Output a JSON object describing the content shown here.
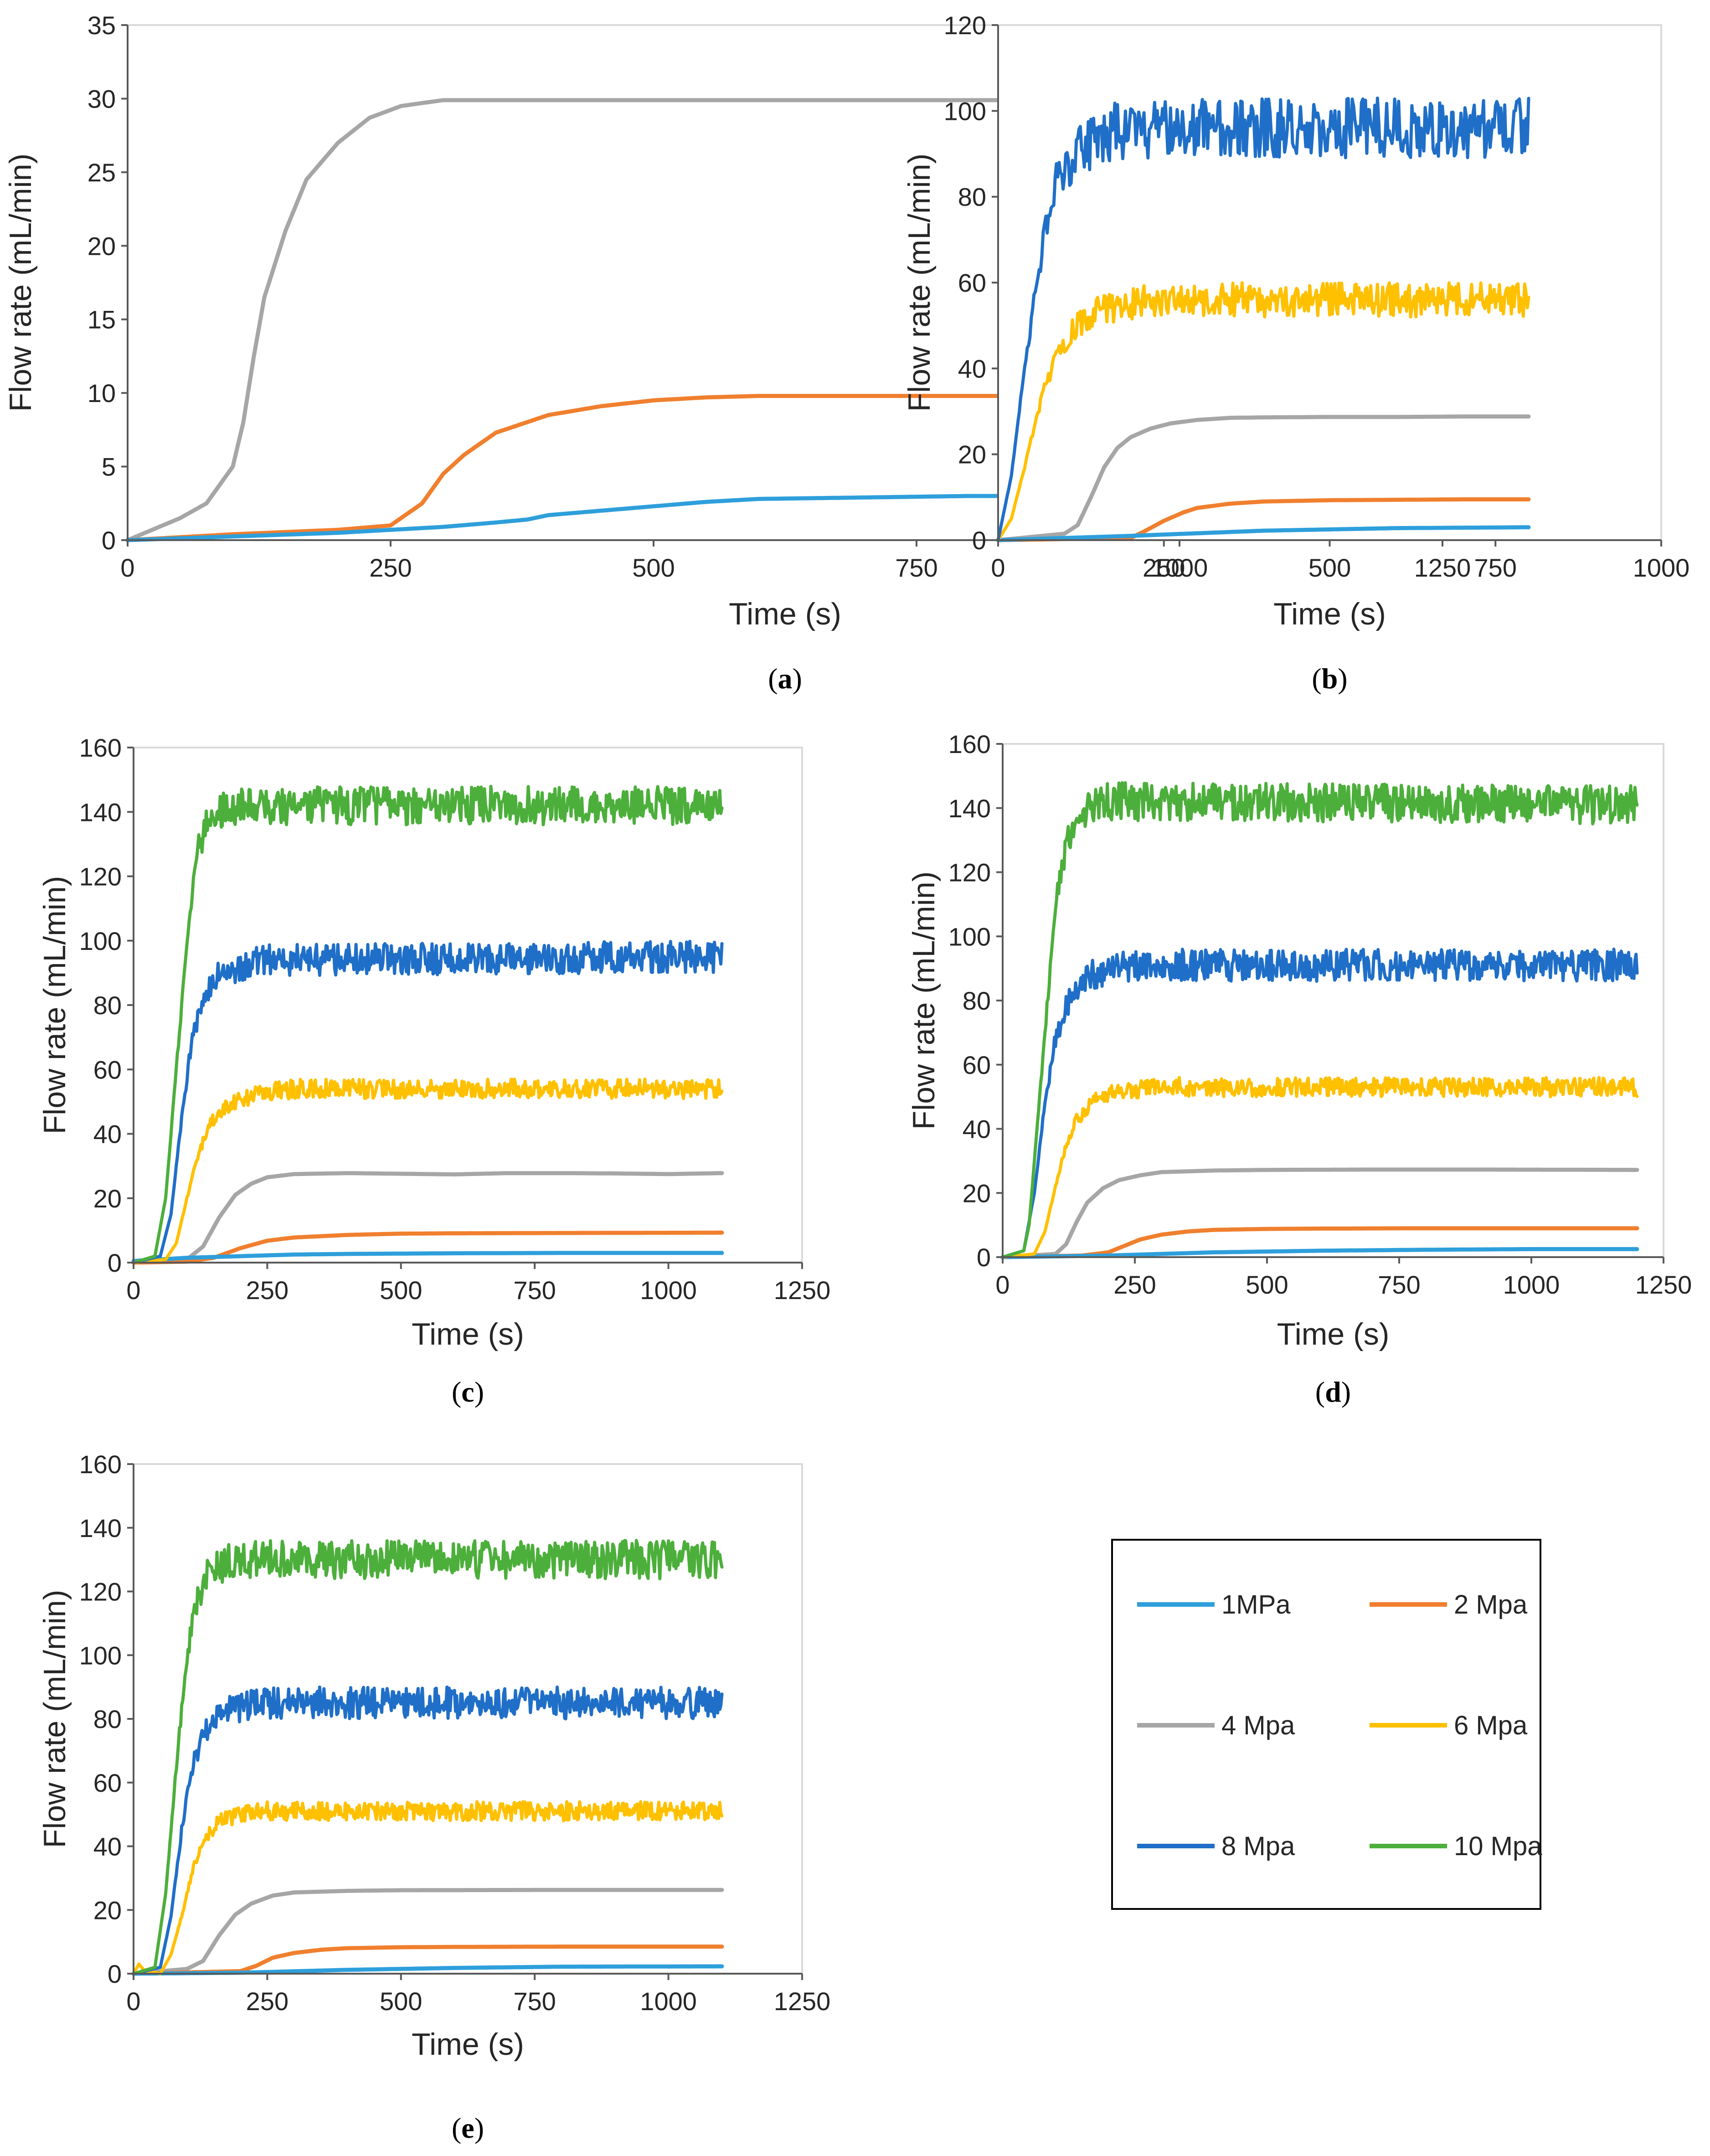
{
  "figure": {
    "legend": {
      "entries": [
        {
          "label": "1MPa",
          "color": "#2e9fdb"
        },
        {
          "label": "2 Mpa",
          "color": "#f07f2e"
        },
        {
          "label": "4 Mpa",
          "color": "#a6a6a6"
        },
        {
          "label": "6 Mpa",
          "color": "#ffc000"
        },
        {
          "label": "8 Mpa",
          "color": "#1f6fc8"
        },
        {
          "label": "10 Mpa",
          "color": "#4caf3b"
        }
      ]
    }
  },
  "chart_data": [
    {
      "panel": "a",
      "caption_open": "(",
      "caption_letter": "a",
      "caption_close": ")",
      "type": "line",
      "xlabel": "Time (s)",
      "ylabel": "Flow rate (mL/min)",
      "xlim": [
        0,
        1250
      ],
      "ylim": [
        0,
        35
      ],
      "xticks": [
        0,
        250,
        500,
        750,
        1000,
        1250
      ],
      "yticks": [
        0,
        5,
        10,
        15,
        20,
        25,
        30,
        35
      ],
      "grid": false,
      "series": [
        {
          "name": "1MPa",
          "color": "#2e9fdb",
          "noise": 0,
          "x": [
            0,
            100,
            200,
            250,
            300,
            350,
            380,
            400,
            450,
            500,
            550,
            600,
            700,
            800,
            900,
            1000
          ],
          "y": [
            0,
            0.25,
            0.5,
            0.7,
            0.9,
            1.2,
            1.4,
            1.7,
            2.0,
            2.3,
            2.6,
            2.8,
            2.9,
            3.0,
            3.0,
            3.0
          ]
        },
        {
          "name": "2 Mpa",
          "color": "#f07f2e",
          "noise": 0,
          "x": [
            0,
            100,
            200,
            250,
            280,
            300,
            320,
            350,
            400,
            450,
            500,
            550,
            600,
            700,
            800,
            900,
            1000
          ],
          "y": [
            0,
            0.4,
            0.7,
            1.0,
            2.5,
            4.5,
            5.8,
            7.3,
            8.5,
            9.1,
            9.5,
            9.7,
            9.8,
            9.8,
            9.8,
            9.8,
            9.8
          ]
        },
        {
          "name": "4 Mpa",
          "color": "#a6a6a6",
          "noise": 0,
          "x": [
            0,
            50,
            75,
            100,
            110,
            120,
            130,
            150,
            170,
            200,
            230,
            260,
            300,
            400,
            500,
            600,
            700,
            800,
            900,
            1000
          ],
          "y": [
            0,
            1.5,
            2.5,
            5.0,
            8.0,
            12.5,
            16.5,
            21.0,
            24.5,
            27.0,
            28.7,
            29.5,
            29.9,
            29.9,
            29.9,
            29.9,
            29.9,
            29.9,
            29.9,
            29.9
          ]
        }
      ]
    },
    {
      "panel": "b",
      "caption_open": "(",
      "caption_letter": "b",
      "caption_close": ")",
      "type": "line",
      "xlabel": "Time (s)",
      "ylabel": "Flow rate (mL/min)",
      "xlim": [
        0,
        1000
      ],
      "ylim": [
        0,
        120
      ],
      "xticks": [
        0,
        250,
        500,
        750,
        1000
      ],
      "yticks": [
        0,
        20,
        40,
        60,
        80,
        100,
        120
      ],
      "grid": false,
      "series": [
        {
          "name": "1MPa",
          "color": "#2e9fdb",
          "noise": 0,
          "x": [
            0,
            100,
            200,
            300,
            400,
            500,
            600,
            700,
            800
          ],
          "y": [
            0,
            0.5,
            1.0,
            1.6,
            2.2,
            2.5,
            2.8,
            2.9,
            3.0
          ]
        },
        {
          "name": "2 Mpa",
          "color": "#f07f2e",
          "noise": 0,
          "x": [
            0,
            200,
            220,
            250,
            280,
            300,
            350,
            400,
            500,
            600,
            700,
            800
          ],
          "y": [
            0,
            0.5,
            2.0,
            4.5,
            6.5,
            7.5,
            8.5,
            9.0,
            9.3,
            9.4,
            9.5,
            9.5
          ]
        },
        {
          "name": "4 Mpa",
          "color": "#a6a6a6",
          "noise": 0,
          "x": [
            0,
            100,
            120,
            140,
            160,
            180,
            200,
            230,
            260,
            300,
            350,
            400,
            500,
            600,
            700,
            800
          ],
          "y": [
            0,
            1.5,
            3.5,
            10.0,
            17.0,
            21.5,
            24.0,
            26.0,
            27.2,
            28.0,
            28.5,
            28.6,
            28.7,
            28.7,
            28.8,
            28.8
          ]
        },
        {
          "name": "6 Mpa",
          "color": "#ffc000",
          "noise": 4,
          "x": [
            0,
            20,
            40,
            60,
            80,
            100,
            120,
            150,
            200,
            250,
            300,
            800
          ],
          "y": [
            0,
            5,
            17,
            30,
            40,
            46,
            50,
            53,
            55,
            56,
            56,
            56
          ]
        },
        {
          "name": "8 Mpa",
          "color": "#1f6fc8",
          "noise": 7,
          "x": [
            0,
            20,
            40,
            60,
            80,
            100,
            120,
            150,
            200,
            250,
            800
          ],
          "y": [
            0,
            15,
            40,
            62,
            80,
            87,
            91,
            94,
            96,
            96,
            96
          ]
        }
      ]
    },
    {
      "panel": "c",
      "caption_open": "(",
      "caption_letter": "c",
      "caption_close": ")",
      "type": "line",
      "xlabel": "Time (s)",
      "ylabel": "Flow rate (mL/min)",
      "xlim": [
        0,
        1250
      ],
      "ylim": [
        0,
        160
      ],
      "xticks": [
        0,
        250,
        500,
        750,
        1000,
        1250
      ],
      "yticks": [
        0,
        20,
        40,
        60,
        80,
        100,
        120,
        140,
        160
      ],
      "grid": false,
      "series": [
        {
          "name": "1MPa",
          "color": "#2e9fdb",
          "noise": 0,
          "x": [
            0,
            100,
            200,
            300,
            400,
            500,
            600,
            800,
            1100
          ],
          "y": [
            0.5,
            1.5,
            2.0,
            2.5,
            2.7,
            2.8,
            2.9,
            3.0,
            3.0
          ]
        },
        {
          "name": "2 Mpa",
          "color": "#f07f2e",
          "noise": 0,
          "x": [
            0,
            100,
            150,
            200,
            250,
            300,
            400,
            500,
            600,
            800,
            1100
          ],
          "y": [
            0,
            0.3,
            1.5,
            4.5,
            6.8,
            7.8,
            8.6,
            9.0,
            9.1,
            9.2,
            9.3
          ]
        },
        {
          "name": "4 Mpa",
          "color": "#a6a6a6",
          "noise": 0,
          "x": [
            0,
            100,
            130,
            160,
            190,
            220,
            250,
            300,
            400,
            500,
            600,
            700,
            800,
            900,
            1000,
            1100
          ],
          "y": [
            0,
            1.0,
            5.0,
            14.0,
            21.0,
            24.5,
            26.5,
            27.5,
            27.8,
            27.6,
            27.4,
            27.8,
            27.8,
            27.7,
            27.5,
            27.8
          ]
        },
        {
          "name": "6 Mpa",
          "color": "#ffc000",
          "noise": 3,
          "x": [
            0,
            60,
            80,
            100,
            120,
            140,
            160,
            200,
            250,
            300,
            1100
          ],
          "y": [
            0,
            1,
            6,
            20,
            33,
            42,
            47,
            51,
            53,
            54,
            54
          ]
        },
        {
          "name": "8 Mpa",
          "color": "#1f6fc8",
          "noise": 5,
          "x": [
            0,
            50,
            70,
            90,
            110,
            130,
            150,
            200,
            250,
            1100
          ],
          "y": [
            0,
            2,
            15,
            45,
            70,
            82,
            88,
            92,
            94,
            95
          ]
        },
        {
          "name": "10 Mpa",
          "color": "#4caf3b",
          "noise": 6,
          "x": [
            0,
            40,
            60,
            80,
            100,
            120,
            140,
            160,
            200,
            1100
          ],
          "y": [
            0,
            2,
            20,
            60,
            100,
            128,
            138,
            141,
            142,
            142
          ]
        }
      ]
    },
    {
      "panel": "d",
      "caption_open": "(",
      "caption_letter": "d",
      "caption_close": ")",
      "type": "line",
      "xlabel": "Time (s)",
      "ylabel": "Flow rate (mL/min)",
      "xlim": [
        0,
        1250
      ],
      "ylim": [
        0,
        160
      ],
      "xticks": [
        0,
        250,
        500,
        750,
        1000,
        1250
      ],
      "yticks": [
        0,
        20,
        40,
        60,
        80,
        100,
        120,
        140,
        160
      ],
      "grid": false,
      "series": [
        {
          "name": "1MPa",
          "color": "#2e9fdb",
          "noise": 0,
          "x": [
            0,
            200,
            400,
            600,
            800,
            1000,
            1200
          ],
          "y": [
            0,
            0.5,
            1.5,
            2.0,
            2.3,
            2.5,
            2.5
          ]
        },
        {
          "name": "2 Mpa",
          "color": "#f07f2e",
          "noise": 0,
          "x": [
            0,
            150,
            200,
            230,
            260,
            300,
            350,
            400,
            500,
            600,
            800,
            1200
          ],
          "y": [
            0,
            0.5,
            1.5,
            3.5,
            5.5,
            7.0,
            8.0,
            8.5,
            8.8,
            8.9,
            9.0,
            9.0
          ]
        },
        {
          "name": "4 Mpa",
          "color": "#a6a6a6",
          "noise": 0,
          "x": [
            0,
            100,
            120,
            140,
            160,
            190,
            220,
            260,
            300,
            400,
            500,
            700,
            900,
            1200
          ],
          "y": [
            0,
            1.0,
            4.0,
            11.0,
            17.0,
            21.5,
            24.0,
            25.5,
            26.5,
            27.0,
            27.2,
            27.3,
            27.3,
            27.2
          ]
        },
        {
          "name": "6 Mpa",
          "color": "#ffc000",
          "noise": 3,
          "x": [
            0,
            60,
            80,
            100,
            120,
            140,
            170,
            200,
            250,
            300,
            1200
          ],
          "y": [
            0,
            1,
            8,
            22,
            35,
            43,
            48,
            51,
            52,
            53,
            53
          ]
        },
        {
          "name": "8 Mpa",
          "color": "#1f6fc8",
          "noise": 5,
          "x": [
            0,
            40,
            60,
            80,
            100,
            120,
            140,
            170,
            200,
            250,
            1200
          ],
          "y": [
            0,
            2,
            20,
            48,
            68,
            78,
            84,
            88,
            90,
            91,
            91
          ]
        },
        {
          "name": "10 Mpa",
          "color": "#4caf3b",
          "noise": 6,
          "x": [
            0,
            40,
            50,
            60,
            80,
            100,
            120,
            140,
            170,
            200,
            1200
          ],
          "y": [
            0,
            2,
            10,
            30,
            70,
            110,
            128,
            135,
            140,
            142,
            141
          ]
        }
      ]
    },
    {
      "panel": "e",
      "caption_open": "(",
      "caption_letter": "e",
      "caption_close": ")",
      "type": "line",
      "xlabel": "Time (s)",
      "ylabel": "Flow rate (mL/min)",
      "xlim": [
        0,
        1250
      ],
      "ylim": [
        0,
        160
      ],
      "xticks": [
        0,
        250,
        500,
        750,
        1000,
        1250
      ],
      "yticks": [
        0,
        20,
        40,
        60,
        80,
        100,
        120,
        140,
        160
      ],
      "grid": false,
      "series": [
        {
          "name": "1MPa",
          "color": "#2e9fdb",
          "noise": 0,
          "x": [
            0,
            200,
            400,
            600,
            800,
            1100
          ],
          "y": [
            0,
            0.3,
            1.2,
            1.8,
            2.2,
            2.3
          ]
        },
        {
          "name": "2 Mpa",
          "color": "#f07f2e",
          "noise": 0,
          "x": [
            0,
            200,
            230,
            260,
            300,
            350,
            400,
            500,
            600,
            800,
            1100
          ],
          "y": [
            0,
            0.8,
            2.5,
            5.0,
            6.5,
            7.5,
            8.0,
            8.3,
            8.4,
            8.5,
            8.5
          ]
        },
        {
          "name": "4 Mpa",
          "color": "#a6a6a6",
          "noise": 0,
          "x": [
            0,
            100,
            130,
            160,
            190,
            220,
            260,
            300,
            400,
            500,
            800,
            1100
          ],
          "y": [
            0,
            1.5,
            4.0,
            12.0,
            18.5,
            22.0,
            24.5,
            25.5,
            26.0,
            26.2,
            26.3,
            26.3
          ]
        },
        {
          "name": "6 Mpa",
          "color": "#ffc000",
          "noise": 3,
          "x": [
            0,
            10,
            20,
            50,
            70,
            90,
            110,
            130,
            160,
            200,
            250,
            1100
          ],
          "y": [
            0,
            3,
            1,
            0,
            6,
            18,
            32,
            42,
            48,
            50,
            51,
            51
          ]
        },
        {
          "name": "8 Mpa",
          "color": "#1f6fc8",
          "noise": 5,
          "x": [
            0,
            50,
            70,
            90,
            110,
            130,
            160,
            200,
            250,
            1100
          ],
          "y": [
            0,
            2,
            18,
            45,
            65,
            75,
            81,
            84,
            85,
            85
          ]
        },
        {
          "name": "10 Mpa",
          "color": "#4caf3b",
          "noise": 6,
          "x": [
            0,
            40,
            60,
            80,
            100,
            120,
            140,
            170,
            200,
            1100
          ],
          "y": [
            0,
            2,
            25,
            65,
            100,
            118,
            125,
            129,
            130,
            130
          ]
        }
      ]
    }
  ]
}
